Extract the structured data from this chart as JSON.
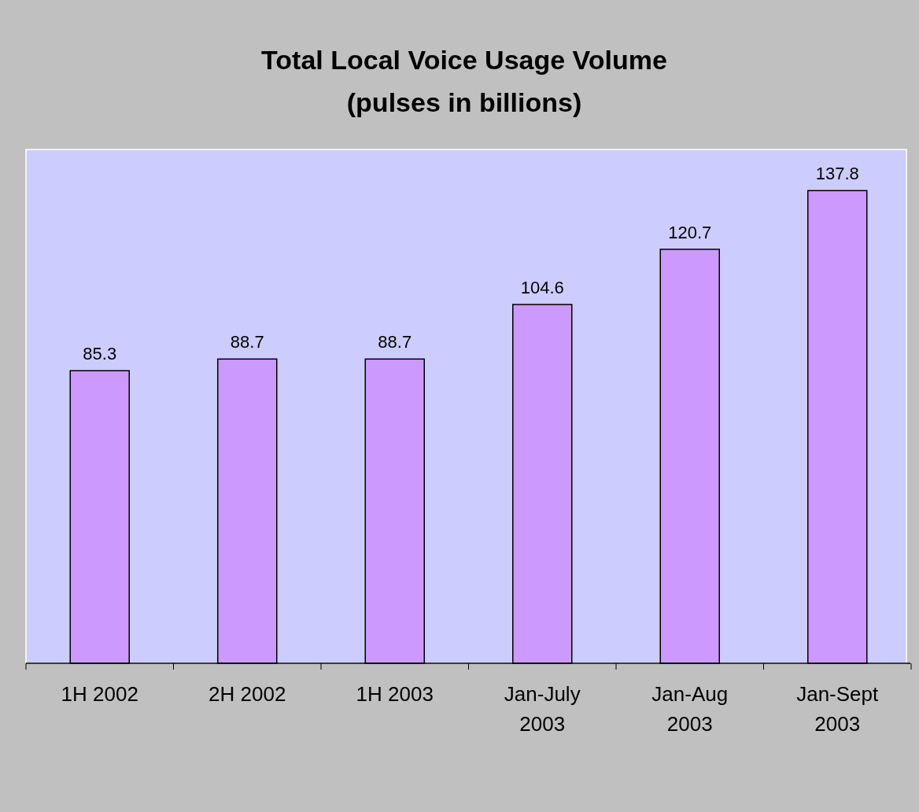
{
  "chart_data": {
    "type": "bar",
    "title": "Total Local Voice Usage Volume\n(pulses in billions)",
    "categories": [
      "1H 2002",
      "2H 2002",
      "1H 2003",
      "Jan-July 2003",
      "Jan-Aug 2003",
      "Jan-Sept 2003"
    ],
    "values": [
      85.3,
      88.7,
      88.7,
      104.6,
      120.7,
      137.8
    ],
    "color": "#cc99ff",
    "data_labels": true
  }
}
